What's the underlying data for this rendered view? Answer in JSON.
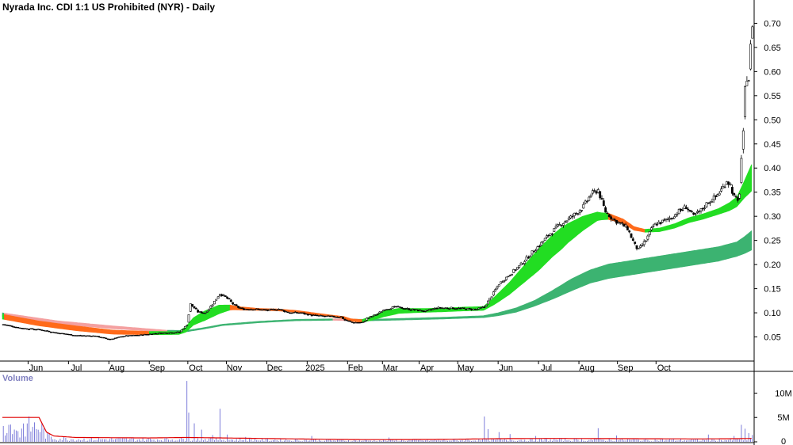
{
  "chart_data": {
    "type": "candlestick",
    "title": "Nyrada Inc. CDI 1:1 US Prohibited (NYR) - Daily",
    "volume_label": "Volume",
    "price_axis": {
      "ticks": [
        0.05,
        0.1,
        0.15,
        0.2,
        0.25,
        0.3,
        0.35,
        0.4,
        0.45,
        0.5,
        0.55,
        0.6,
        0.65,
        0.7
      ],
      "tick_labels": [
        "0.05",
        "0.10",
        "0.15",
        "0.20",
        "0.25",
        "0.30",
        "0.35",
        "0.40",
        "0.45",
        "0.50",
        "0.55",
        "0.60",
        "0.65",
        "0.70"
      ],
      "range": [
        0.0,
        0.745
      ]
    },
    "volume_axis": {
      "ticks": [
        0,
        5000000,
        10000000
      ],
      "tick_labels": [
        "0",
        "5M",
        "10M"
      ],
      "range": [
        0,
        13000000
      ]
    },
    "x_axis": {
      "labels": [
        "Jun",
        "Jul",
        "Aug",
        "Sep",
        "Oct",
        "Nov",
        "Dec",
        "2025",
        "Feb",
        "Mar",
        "Apr",
        "May",
        "Jun",
        "Jul",
        "Aug",
        "Sep",
        "Oct"
      ],
      "label_bar": [
        14,
        36,
        58,
        80,
        101,
        122,
        144,
        166,
        188,
        207,
        227,
        248,
        270,
        292,
        314,
        335,
        356
      ]
    },
    "price_anchors": [
      [
        0,
        0.076
      ],
      [
        10,
        0.068
      ],
      [
        20,
        0.065
      ],
      [
        30,
        0.058
      ],
      [
        40,
        0.053
      ],
      [
        50,
        0.052
      ],
      [
        58,
        0.045
      ],
      [
        66,
        0.052
      ],
      [
        75,
        0.054
      ],
      [
        85,
        0.058
      ],
      [
        96,
        0.06
      ],
      [
        100,
        0.075
      ],
      [
        102,
        0.118
      ],
      [
        106,
        0.102
      ],
      [
        110,
        0.1
      ],
      [
        114,
        0.118
      ],
      [
        118,
        0.14
      ],
      [
        122,
        0.13
      ],
      [
        126,
        0.115
      ],
      [
        130,
        0.108
      ],
      [
        136,
        0.108
      ],
      [
        144,
        0.105
      ],
      [
        150,
        0.108
      ],
      [
        156,
        0.1
      ],
      [
        162,
        0.1
      ],
      [
        168,
        0.095
      ],
      [
        174,
        0.093
      ],
      [
        180,
        0.092
      ],
      [
        184,
        0.092
      ],
      [
        186,
        0.085
      ],
      [
        190,
        0.08
      ],
      [
        196,
        0.08
      ],
      [
        198,
        0.088
      ],
      [
        204,
        0.098
      ],
      [
        208,
        0.108
      ],
      [
        214,
        0.112
      ],
      [
        222,
        0.107
      ],
      [
        230,
        0.103
      ],
      [
        236,
        0.11
      ],
      [
        244,
        0.11
      ],
      [
        252,
        0.108
      ],
      [
        258,
        0.107
      ],
      [
        262,
        0.112
      ],
      [
        266,
        0.135
      ],
      [
        270,
        0.16
      ],
      [
        276,
        0.18
      ],
      [
        282,
        0.2
      ],
      [
        288,
        0.225
      ],
      [
        292,
        0.24
      ],
      [
        298,
        0.265
      ],
      [
        304,
        0.285
      ],
      [
        310,
        0.3
      ],
      [
        316,
        0.32
      ],
      [
        320,
        0.345
      ],
      [
        324,
        0.355
      ],
      [
        326,
        0.33
      ],
      [
        328,
        0.31
      ],
      [
        332,
        0.295
      ],
      [
        336,
        0.285
      ],
      [
        340,
        0.275
      ],
      [
        344,
        0.24
      ],
      [
        346,
        0.23
      ],
      [
        350,
        0.25
      ],
      [
        354,
        0.28
      ],
      [
        356,
        0.285
      ],
      [
        360,
        0.29
      ],
      [
        364,
        0.298
      ],
      [
        368,
        0.31
      ],
      [
        372,
        0.32
      ],
      [
        376,
        0.3
      ],
      [
        380,
        0.312
      ],
      [
        384,
        0.33
      ],
      [
        388,
        0.34
      ],
      [
        392,
        0.36
      ],
      [
        394,
        0.375
      ],
      [
        396,
        0.365
      ],
      [
        398,
        0.34
      ],
      [
        400,
        0.33
      ],
      [
        401,
        0.35
      ],
      [
        402,
        0.42
      ],
      [
        403,
        0.47
      ],
      [
        404,
        0.56
      ],
      [
        405,
        0.59
      ],
      [
        406,
        0.585
      ],
      [
        407,
        0.65
      ],
      [
        408,
        0.7
      ]
    ],
    "fast_ema_anchors": [
      [
        0,
        0.092
      ],
      [
        20,
        0.078
      ],
      [
        40,
        0.068
      ],
      [
        60,
        0.06
      ],
      [
        80,
        0.058
      ],
      [
        96,
        0.058
      ],
      [
        100,
        0.066
      ],
      [
        104,
        0.082
      ],
      [
        108,
        0.09
      ],
      [
        112,
        0.097
      ],
      [
        118,
        0.107
      ],
      [
        124,
        0.111
      ],
      [
        130,
        0.109
      ],
      [
        140,
        0.107
      ],
      [
        150,
        0.106
      ],
      [
        160,
        0.103
      ],
      [
        170,
        0.098
      ],
      [
        180,
        0.093
      ],
      [
        186,
        0.09
      ],
      [
        190,
        0.085
      ],
      [
        196,
        0.083
      ],
      [
        202,
        0.09
      ],
      [
        208,
        0.098
      ],
      [
        216,
        0.104
      ],
      [
        230,
        0.105
      ],
      [
        240,
        0.106
      ],
      [
        252,
        0.108
      ],
      [
        262,
        0.109
      ],
      [
        268,
        0.125
      ],
      [
        276,
        0.15
      ],
      [
        284,
        0.18
      ],
      [
        292,
        0.21
      ],
      [
        300,
        0.24
      ],
      [
        308,
        0.265
      ],
      [
        316,
        0.285
      ],
      [
        324,
        0.3
      ],
      [
        330,
        0.3
      ],
      [
        338,
        0.29
      ],
      [
        344,
        0.275
      ],
      [
        350,
        0.27
      ],
      [
        358,
        0.272
      ],
      [
        366,
        0.28
      ],
      [
        374,
        0.292
      ],
      [
        382,
        0.3
      ],
      [
        390,
        0.31
      ],
      [
        396,
        0.32
      ],
      [
        400,
        0.33
      ],
      [
        404,
        0.355
      ],
      [
        408,
        0.38
      ]
    ],
    "fast_band_width_anchors": [
      [
        0,
        0.01
      ],
      [
        40,
        0.01
      ],
      [
        96,
        0.006
      ],
      [
        100,
        0.012
      ],
      [
        110,
        0.02
      ],
      [
        118,
        0.018
      ],
      [
        126,
        0.008
      ],
      [
        140,
        0.004
      ],
      [
        180,
        0.004
      ],
      [
        196,
        0.006
      ],
      [
        208,
        0.012
      ],
      [
        230,
        0.008
      ],
      [
        262,
        0.008
      ],
      [
        270,
        0.018
      ],
      [
        280,
        0.03
      ],
      [
        292,
        0.045
      ],
      [
        304,
        0.045
      ],
      [
        316,
        0.03
      ],
      [
        326,
        0.015
      ],
      [
        336,
        0.01
      ],
      [
        350,
        0.006
      ],
      [
        370,
        0.01
      ],
      [
        390,
        0.012
      ],
      [
        400,
        0.02
      ],
      [
        404,
        0.035
      ],
      [
        408,
        0.055
      ]
    ],
    "slow_ema_anchors": [
      [
        0,
        0.096
      ],
      [
        30,
        0.08
      ],
      [
        60,
        0.07
      ],
      [
        90,
        0.062
      ],
      [
        100,
        0.062
      ],
      [
        110,
        0.068
      ],
      [
        120,
        0.075
      ],
      [
        140,
        0.081
      ],
      [
        160,
        0.085
      ],
      [
        180,
        0.086
      ],
      [
        190,
        0.085
      ],
      [
        200,
        0.085
      ],
      [
        220,
        0.087
      ],
      [
        240,
        0.089
      ],
      [
        262,
        0.092
      ],
      [
        270,
        0.097
      ],
      [
        280,
        0.106
      ],
      [
        290,
        0.12
      ],
      [
        300,
        0.138
      ],
      [
        310,
        0.158
      ],
      [
        320,
        0.175
      ],
      [
        330,
        0.186
      ],
      [
        340,
        0.192
      ],
      [
        350,
        0.198
      ],
      [
        360,
        0.204
      ],
      [
        370,
        0.21
      ],
      [
        380,
        0.216
      ],
      [
        390,
        0.222
      ],
      [
        400,
        0.232
      ],
      [
        404,
        0.24
      ],
      [
        408,
        0.25
      ]
    ],
    "slow_band_width_anchors": [
      [
        0,
        0.008
      ],
      [
        60,
        0.006
      ],
      [
        100,
        0.003
      ],
      [
        180,
        0.003
      ],
      [
        262,
        0.004
      ],
      [
        290,
        0.012
      ],
      [
        310,
        0.025
      ],
      [
        330,
        0.03
      ],
      [
        370,
        0.03
      ],
      [
        400,
        0.03
      ],
      [
        408,
        0.04
      ]
    ],
    "volume_baseline_anchors": [
      [
        0,
        5000000
      ],
      [
        6,
        5000000
      ],
      [
        20,
        5000000
      ],
      [
        22,
        3500000
      ],
      [
        24,
        2000000
      ],
      [
        28,
        1200000
      ],
      [
        40,
        900000
      ],
      [
        60,
        850000
      ],
      [
        80,
        800000
      ],
      [
        100,
        900000
      ],
      [
        110,
        850000
      ],
      [
        140,
        700000
      ],
      [
        180,
        500000
      ],
      [
        200,
        450000
      ],
      [
        240,
        500000
      ],
      [
        270,
        650000
      ],
      [
        300,
        700000
      ],
      [
        340,
        650000
      ],
      [
        380,
        600000
      ],
      [
        400,
        650000
      ],
      [
        408,
        700000
      ]
    ],
    "volume_spikes": [
      [
        2,
        1800000
      ],
      [
        5,
        1600000
      ],
      [
        9,
        900000
      ],
      [
        100,
        12500000
      ],
      [
        101,
        6000000
      ],
      [
        104,
        3800000
      ],
      [
        108,
        2500000
      ],
      [
        114,
        1400000
      ],
      [
        118,
        6800000
      ],
      [
        122,
        1500000
      ],
      [
        132,
        1000000
      ],
      [
        168,
        1200000
      ],
      [
        210,
        900000
      ],
      [
        262,
        5200000
      ],
      [
        264,
        2600000
      ],
      [
        270,
        2000000
      ],
      [
        276,
        1600000
      ],
      [
        290,
        1200000
      ],
      [
        324,
        2800000
      ],
      [
        334,
        1300000
      ],
      [
        384,
        1500000
      ],
      [
        398,
        1200000
      ],
      [
        402,
        3500000
      ],
      [
        404,
        2700000
      ],
      [
        406,
        1800000
      ],
      [
        408,
        1400000
      ]
    ],
    "colors": {
      "up_candle": "#ffffff",
      "down_candle": "#000000",
      "candle_outline": "#000000",
      "fast_band_bull": "#22dd22",
      "fast_band_bear": "#ff6a1a",
      "slow_band_bull": "#3cb371",
      "slow_band_bear": "#f4a0a0",
      "volume_bars": "#6f6fd6",
      "volume_ma": "#e00000",
      "axis_text": "#000000",
      "volume_label": "#8080c0"
    },
    "grid": false
  }
}
